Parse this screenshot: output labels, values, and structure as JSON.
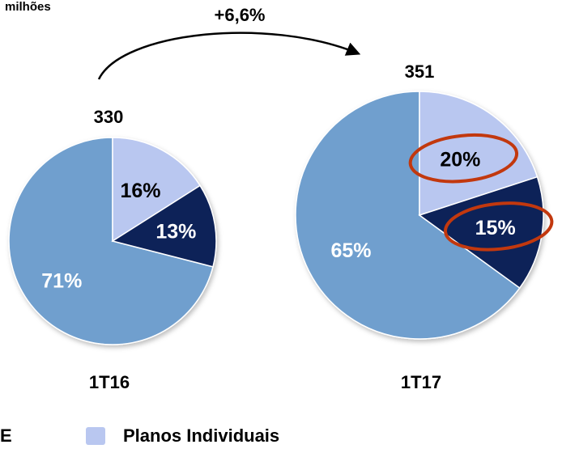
{
  "header": {
    "unit": "milhões",
    "growth": "+6,6%"
  },
  "legend": {
    "partial_entry": "E",
    "entry_label": "Planos Individuais"
  },
  "colors": {
    "large_slice": "#6f9fce",
    "planos_individuais": "#b9c7f0",
    "dark_slice": "#0f2158",
    "highlight_ring": "#c2380e"
  },
  "chart_data": {
    "type": "pie",
    "charts": [
      {
        "period": "1T16",
        "total": "330",
        "slices": [
          {
            "value": 71,
            "label": "71%"
          },
          {
            "value": 16,
            "label": "16%"
          },
          {
            "value": 13,
            "label": "13%"
          }
        ]
      },
      {
        "period": "1T17",
        "total": "351",
        "slices": [
          {
            "value": 65,
            "label": "65%"
          },
          {
            "value": 20,
            "label": "20%",
            "highlighted": true
          },
          {
            "value": 15,
            "label": "15%",
            "highlighted": true
          }
        ]
      }
    ]
  }
}
